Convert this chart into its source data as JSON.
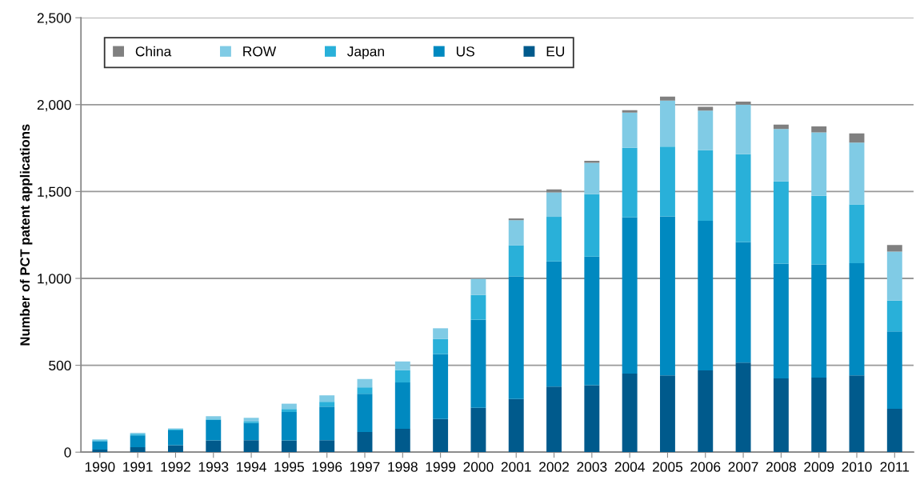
{
  "chart_data": {
    "type": "bar",
    "stacked": true,
    "ylabel": "Number of PCT patent applications",
    "categories": [
      "1990",
      "1991",
      "1992",
      "1993",
      "1994",
      "1995",
      "1996",
      "1997",
      "1998",
      "1999",
      "2000",
      "2001",
      "2002",
      "2003",
      "2004",
      "2005",
      "2006",
      "2007",
      "2008",
      "2009",
      "2010",
      "2011"
    ],
    "series": [
      {
        "name": "EU",
        "color": "#005a8c",
        "values": [
          15,
          28,
          40,
          68,
          69,
          68,
          69,
          116,
          134,
          191,
          255,
          306,
          377,
          385,
          452,
          442,
          471,
          515,
          425,
          429,
          442,
          249
        ]
      },
      {
        "name": "US",
        "color": "#0089c0",
        "values": [
          48,
          69,
          85,
          117,
          99,
          163,
          193,
          220,
          267,
          374,
          507,
          705,
          721,
          741,
          900,
          915,
          861,
          694,
          660,
          651,
          646,
          446
        ]
      },
      {
        "name": "Japan",
        "color": "#29b0d9",
        "values": [
          6,
          8,
          5,
          3,
          8,
          17,
          28,
          37,
          71,
          86,
          143,
          180,
          256,
          359,
          400,
          401,
          406,
          506,
          473,
          395,
          338,
          177
        ]
      },
      {
        "name": "ROW",
        "color": "#80cbe5",
        "values": [
          4,
          6,
          7,
          19,
          22,
          31,
          37,
          48,
          50,
          62,
          92,
          144,
          141,
          180,
          202,
          265,
          228,
          285,
          302,
          365,
          356,
          282
        ]
      },
      {
        "name": "China",
        "color": "#808080",
        "values": [
          null,
          null,
          null,
          null,
          null,
          null,
          null,
          null,
          null,
          null,
          null,
          10,
          17,
          12,
          14,
          23,
          22,
          18,
          25,
          35,
          52,
          38
        ]
      }
    ],
    "ylim": [
      0,
      2500
    ],
    "yticks": [
      0,
      500,
      {
        "value": 1000,
        "label": "1,000"
      },
      {
        "value": 1500,
        "label": "1,500"
      },
      {
        "value": 2000,
        "label": "2,000"
      },
      {
        "value": 2500,
        "label": "2,500"
      }
    ],
    "grid": "y",
    "legend": "top left"
  }
}
